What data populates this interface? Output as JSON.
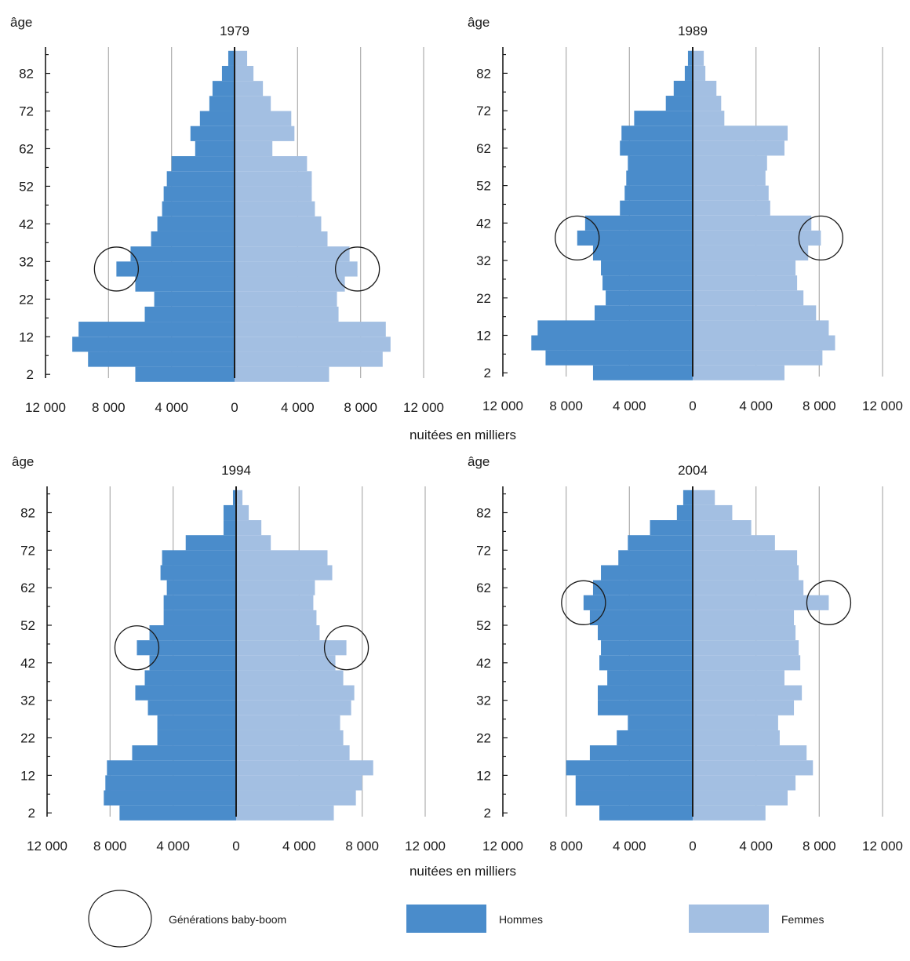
{
  "colors": {
    "men": "#4a8ccb",
    "women": "#a3bfe2",
    "grid": "#b3b3b3",
    "axis": "#1a1a1a"
  },
  "x_axis_label": "nuitées en milliers",
  "legend": {
    "baby_boom": "Générations baby-boom",
    "men": "Hommes",
    "women": "Femmes"
  },
  "chart_data": [
    {
      "type": "bar",
      "orientation": "horizontal-pyramid",
      "title": "1979",
      "ylabel": "âge",
      "xlabel": "nuitées en milliers",
      "xlim": [
        -12000,
        12000
      ],
      "x_ticks": [
        -12000,
        -8000,
        -4000,
        0,
        4000,
        8000,
        12000
      ],
      "x_tick_labels": [
        "12 000",
        "8 000",
        "4 000",
        "0",
        "4 000",
        "8 000",
        "12 000"
      ],
      "y_ticks": [
        2,
        12,
        22,
        32,
        42,
        52,
        62,
        72,
        82
      ],
      "ages": [
        2,
        6,
        10,
        14,
        18,
        22,
        26,
        30,
        34,
        38,
        42,
        46,
        50,
        54,
        58,
        62,
        66,
        70,
        74,
        78,
        82,
        86
      ],
      "series": [
        {
          "name": "Hommes",
          "values": [
            6300,
            9300,
            10300,
            9900,
            5700,
            5100,
            6300,
            7500,
            6600,
            5300,
            4900,
            4600,
            4500,
            4300,
            4000,
            2500,
            2800,
            2200,
            1600,
            1400,
            800,
            400
          ]
        },
        {
          "name": "Femmes",
          "values": [
            6000,
            9400,
            9900,
            9600,
            6600,
            6500,
            7000,
            7800,
            7300,
            5900,
            5500,
            5100,
            4900,
            4900,
            4600,
            2400,
            3800,
            3600,
            2300,
            1800,
            1200,
            800
          ]
        }
      ],
      "baby_boom_age": 30
    },
    {
      "type": "bar",
      "orientation": "horizontal-pyramid",
      "title": "1989",
      "ylabel": "âge",
      "xlabel": "nuitées en milliers",
      "xlim": [
        -12000,
        12000
      ],
      "x_ticks": [
        -12000,
        -8000,
        -4000,
        0,
        4000,
        8000,
        12000
      ],
      "x_tick_labels": [
        "12 000",
        "8 000",
        "4 000",
        "0",
        "4 000",
        "8 000",
        "12 000"
      ],
      "y_ticks": [
        2,
        12,
        22,
        32,
        42,
        52,
        62,
        72,
        82
      ],
      "ages": [
        2,
        6,
        10,
        14,
        18,
        22,
        26,
        30,
        34,
        38,
        42,
        46,
        50,
        54,
        58,
        62,
        66,
        70,
        74,
        78,
        82,
        86
      ],
      "series": [
        {
          "name": "Hommes",
          "values": [
            6300,
            9300,
            10200,
            9800,
            6200,
            5500,
            5700,
            5800,
            6300,
            7300,
            6800,
            4600,
            4300,
            4200,
            4100,
            4600,
            4500,
            3700,
            1700,
            1200,
            500,
            300
          ]
        },
        {
          "name": "Femmes",
          "values": [
            5800,
            8200,
            9000,
            8600,
            7800,
            7000,
            6600,
            6500,
            7300,
            8100,
            7500,
            4900,
            4800,
            4600,
            4700,
            5800,
            6000,
            2000,
            1800,
            1500,
            800,
            700
          ]
        }
      ],
      "baby_boom_age": 38
    },
    {
      "type": "bar",
      "orientation": "horizontal-pyramid",
      "title": "1994",
      "ylabel": "âge",
      "xlabel": "nuitées en milliers",
      "xlim": [
        -12000,
        12000
      ],
      "x_ticks": [
        -12000,
        -8000,
        -4000,
        0,
        4000,
        8000,
        12000
      ],
      "x_tick_labels": [
        "12 000",
        "8 000",
        "4 000",
        "0",
        "4 000",
        "8 000",
        "12 000"
      ],
      "y_ticks": [
        2,
        12,
        22,
        32,
        42,
        52,
        62,
        72,
        82
      ],
      "ages": [
        2,
        6,
        10,
        14,
        18,
        22,
        26,
        30,
        34,
        38,
        42,
        46,
        50,
        54,
        58,
        62,
        66,
        70,
        74,
        78,
        82,
        86
      ],
      "series": [
        {
          "name": "Hommes",
          "values": [
            7400,
            8400,
            8300,
            8200,
            6600,
            5000,
            5000,
            5600,
            6400,
            5800,
            5500,
            6300,
            5500,
            4600,
            4600,
            4400,
            4800,
            4700,
            3200,
            800,
            800,
            200
          ]
        },
        {
          "name": "Femmes",
          "values": [
            6200,
            7600,
            8000,
            8700,
            7200,
            6800,
            6600,
            7300,
            7500,
            6800,
            6300,
            7000,
            5300,
            5100,
            4900,
            5000,
            6100,
            5800,
            2200,
            1600,
            800,
            400
          ]
        }
      ],
      "baby_boom_age": 46
    },
    {
      "type": "bar",
      "orientation": "horizontal-pyramid",
      "title": "2004",
      "ylabel": "âge",
      "xlabel": "nuitées en milliers",
      "xlim": [
        -12000,
        12000
      ],
      "x_ticks": [
        -12000,
        -8000,
        -4000,
        0,
        4000,
        8000,
        12000
      ],
      "x_tick_labels": [
        "12 000",
        "8 000",
        "4 000",
        "0",
        "4 000",
        "8 000",
        "12 000"
      ],
      "y_ticks": [
        2,
        12,
        22,
        32,
        42,
        52,
        62,
        72,
        82
      ],
      "ages": [
        2,
        6,
        10,
        14,
        18,
        22,
        26,
        30,
        34,
        38,
        42,
        46,
        50,
        54,
        58,
        62,
        66,
        70,
        74,
        78,
        82,
        86
      ],
      "series": [
        {
          "name": "Hommes",
          "values": [
            5900,
            7400,
            7400,
            8000,
            6500,
            4800,
            4100,
            6000,
            6000,
            5400,
            5900,
            5800,
            6000,
            6500,
            6900,
            6300,
            5800,
            4700,
            4100,
            2700,
            1000,
            600
          ]
        },
        {
          "name": "Femmes",
          "values": [
            4600,
            6000,
            6500,
            7600,
            7200,
            5500,
            5400,
            6400,
            6900,
            5800,
            6800,
            6700,
            6500,
            6400,
            8600,
            7000,
            6700,
            6600,
            5200,
            3700,
            2500,
            1400
          ]
        }
      ],
      "baby_boom_age": 58
    }
  ]
}
